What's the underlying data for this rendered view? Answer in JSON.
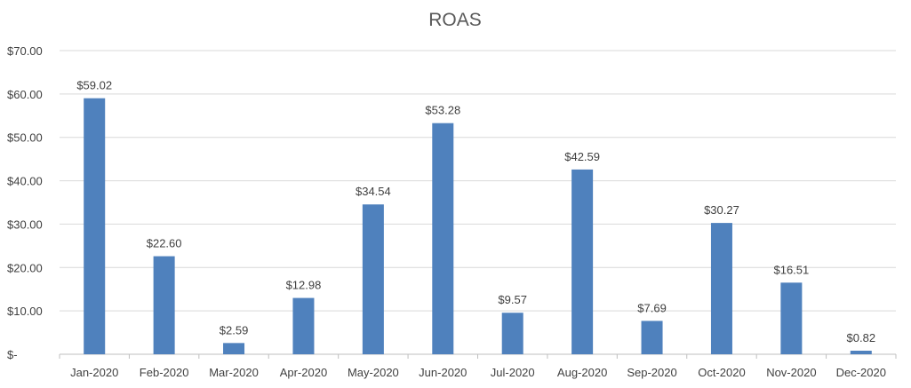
{
  "chart_data": {
    "type": "bar",
    "title": "ROAS",
    "categories": [
      "Jan-2020",
      "Feb-2020",
      "Mar-2020",
      "Apr-2020",
      "May-2020",
      "Jun-2020",
      "Jul-2020",
      "Aug-2020",
      "Sep-2020",
      "Oct-2020",
      "Nov-2020",
      "Dec-2020"
    ],
    "values": [
      59.02,
      22.6,
      2.59,
      12.98,
      34.54,
      53.28,
      9.57,
      42.59,
      7.69,
      30.27,
      16.51,
      0.82
    ],
    "data_labels": [
      "$59.02",
      "$22.60",
      "$2.59",
      "$12.98",
      "$34.54",
      "$53.28",
      "$9.57",
      "$42.59",
      "$7.69",
      "$30.27",
      "$16.51",
      "$0.82"
    ],
    "y_ticks": [
      0,
      10,
      20,
      30,
      40,
      50,
      60,
      70
    ],
    "y_tick_labels": [
      "$-",
      "$10.00",
      "$20.00",
      "$30.00",
      "$40.00",
      "$50.00",
      "$60.00",
      "$70.00"
    ],
    "ylim": [
      0,
      70
    ],
    "grid": true,
    "legend": "none",
    "bar_color": "#4f81bd"
  }
}
